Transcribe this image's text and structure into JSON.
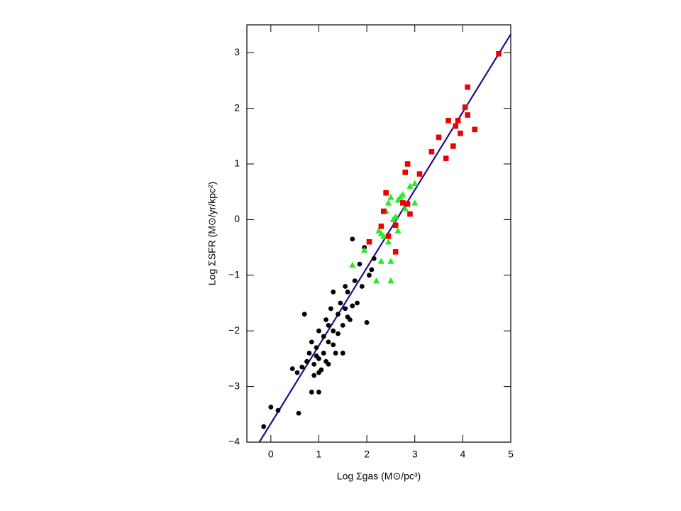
{
  "chart_data": {
    "type": "scatter",
    "x_label": "Log Σgas (M⊙/pc³)",
    "y_label": "Log ΣSFR (M⊙/yr/kpc²)",
    "xlim": [
      -0.5,
      5
    ],
    "ylim": [
      -4,
      3.5
    ],
    "xticks": [
      0,
      1,
      2,
      3,
      4,
      5
    ],
    "yticks": [
      {
        "value": -4,
        "label": "−4"
      },
      {
        "value": -3,
        "label": "−3"
      },
      {
        "value": -2,
        "label": "−2"
      },
      {
        "value": -1,
        "label": "−1"
      },
      0,
      1,
      2,
      3
    ],
    "series": [
      {
        "marker": "circle",
        "color": "#000000",
        "x": [
          -0.15,
          0,
          0.15,
          0.58,
          0.85,
          1.0,
          0.45,
          0.55,
          0.65,
          0.7,
          0.75,
          0.8,
          0.85,
          0.9,
          0.95,
          1.0,
          1.0,
          1.05,
          1.1,
          1.1,
          1.15,
          1.2,
          1.2,
          1.25,
          1.3,
          1.3,
          1.35,
          1.4,
          1.45,
          1.5,
          1.5,
          1.55,
          1.6,
          1.65,
          1.7,
          1.75,
          1.8,
          1.85,
          1.9,
          1.95,
          2.0,
          2.05,
          2.1,
          1.6,
          1.2,
          0.9,
          1.0,
          1.15,
          1.4,
          1.7,
          1.55,
          2.15,
          1.3,
          0.95
        ],
        "y": [
          -3.72,
          -3.37,
          -3.43,
          -3.48,
          -3.1,
          -3.1,
          -2.68,
          -2.75,
          -2.65,
          -1.7,
          -2.55,
          -2.4,
          -2.2,
          -2.6,
          -2.3,
          -2.0,
          -2.5,
          -2.7,
          -2.1,
          -2.4,
          -1.8,
          -2.2,
          -2.6,
          -1.6,
          -2.0,
          -1.3,
          -2.4,
          -1.7,
          -1.5,
          -1.9,
          -2.4,
          -1.6,
          -1.3,
          -1.8,
          -0.35,
          -1.1,
          -1.5,
          -0.8,
          -1.2,
          -0.5,
          -1.85,
          -1.0,
          -0.9,
          -1.75,
          -1.9,
          -2.8,
          -2.75,
          -2.55,
          -2.05,
          -1.55,
          -1.2,
          -0.7,
          -2.25,
          -2.45
        ]
      },
      {
        "marker": "triangle",
        "color": "#22ee22",
        "x": [
          1.7,
          1.95,
          2.2,
          2.25,
          2.3,
          2.35,
          2.4,
          2.45,
          2.5,
          2.45,
          2.5,
          2.5,
          2.55,
          2.6,
          2.65,
          2.7,
          2.75,
          2.8,
          2.9,
          3.0,
          3.0,
          2.65,
          2.3
        ],
        "y": [
          -0.82,
          -0.55,
          -1.1,
          -0.2,
          -0.75,
          -0.3,
          0.15,
          0.3,
          0.4,
          -0.4,
          -0.75,
          -1.1,
          0.0,
          0.05,
          0.35,
          0.4,
          0.45,
          0.2,
          0.6,
          0.65,
          0.3,
          -0.2,
          -0.25
        ]
      },
      {
        "marker": "square",
        "color": "#ee0000",
        "x": [
          2.05,
          2.3,
          2.35,
          2.4,
          2.45,
          2.6,
          2.6,
          2.75,
          2.8,
          2.85,
          2.85,
          2.9,
          3.1,
          3.35,
          3.5,
          3.65,
          3.7,
          3.8,
          3.85,
          3.9,
          3.95,
          4.05,
          4.1,
          4.1,
          4.25,
          4.75
        ],
        "y": [
          -0.4,
          -0.12,
          0.15,
          0.48,
          -0.3,
          -0.1,
          -0.58,
          0.3,
          0.85,
          1.0,
          0.28,
          0.1,
          0.82,
          1.22,
          1.48,
          1.1,
          1.78,
          1.32,
          1.68,
          1.78,
          1.55,
          2.02,
          2.38,
          1.88,
          1.62,
          2.98
        ]
      }
    ],
    "fit_line": {
      "color": "#2a0a8a",
      "x": [
        -0.24,
        5
      ],
      "y": [
        -4,
        3.33
      ]
    }
  }
}
